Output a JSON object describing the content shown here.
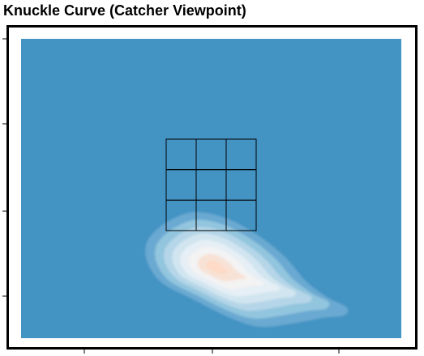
{
  "chart_data": {
    "type": "heatmap",
    "subtype": "kde-density",
    "title": "Knuckle Curve (Catcher Viewpoint)",
    "grid": false,
    "strike_zone": {
      "rows": 3,
      "cols": 3
    },
    "colormap": {
      "background": "#4393c3",
      "levels": [
        "#6aa9d1",
        "#92c5de",
        "#b5d6e8",
        "#d1e5f0",
        "#e6eff5",
        "#f3f3f3",
        "#f8e2d6",
        "#fddbc7"
      ]
    },
    "frame_color": "#000000"
  }
}
